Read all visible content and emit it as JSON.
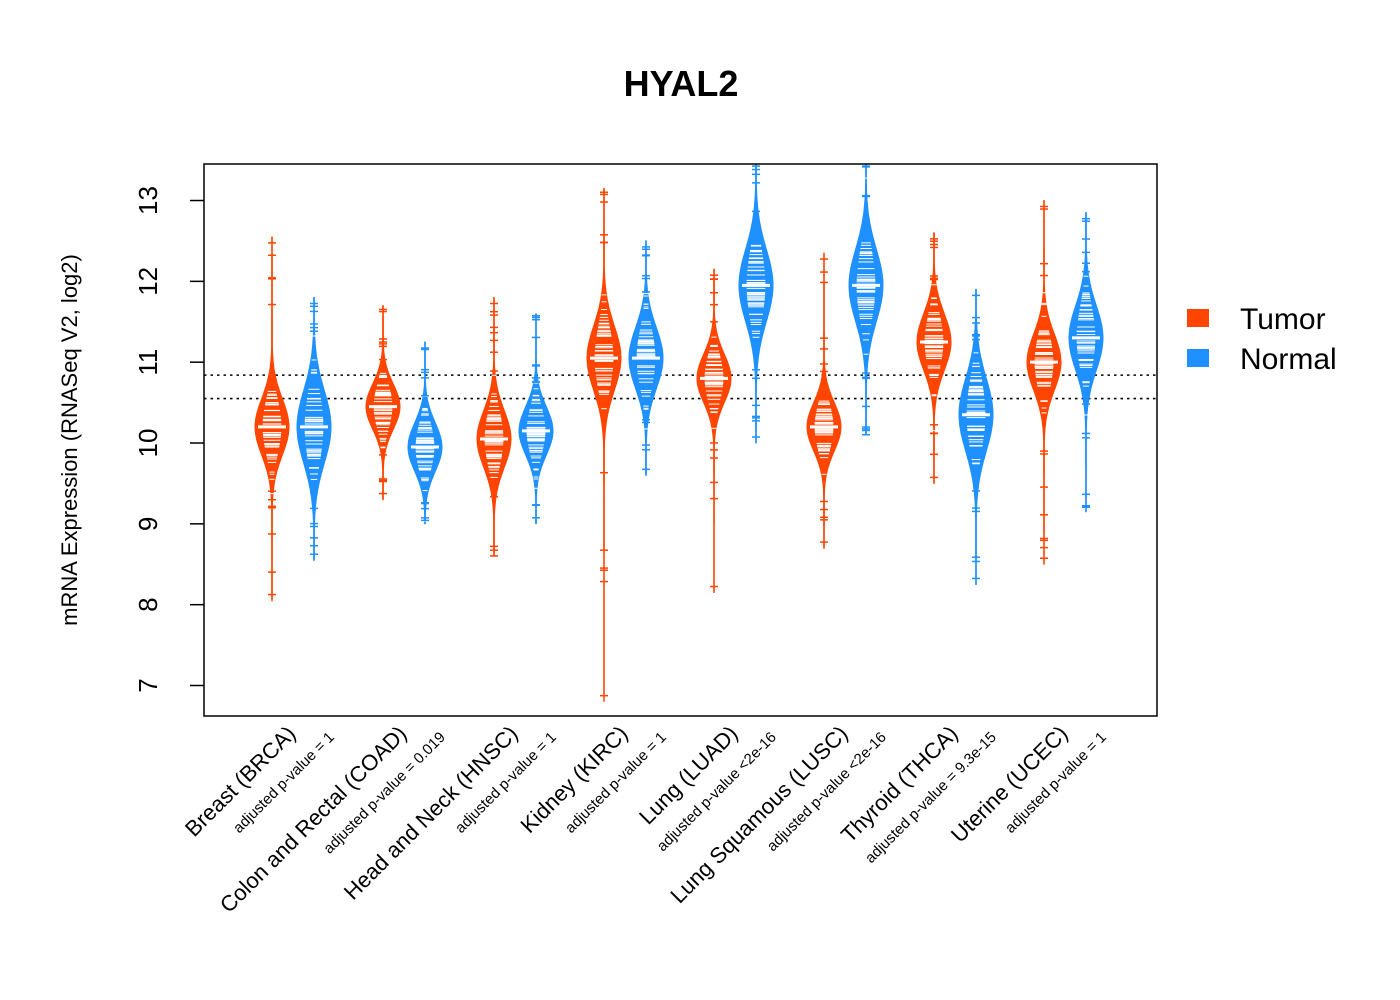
{
  "chart_data": {
    "type": "violin",
    "title": "HYAL2",
    "xlabel": "",
    "ylabel": "mRNA Expression (RNASeq V2, log2)",
    "ylim": [
      6.65,
      13.5
    ],
    "yticks": [
      "7",
      "8",
      "9",
      "10",
      "11",
      "12",
      "13"
    ],
    "reference_lines": [
      10.55,
      10.84
    ],
    "legend": {
      "position": "right",
      "entries": [
        {
          "label": "Tumor",
          "color": "#FF4500"
        },
        {
          "label": "Normal",
          "color": "#1E90FF"
        }
      ]
    },
    "categories": [
      {
        "label": "Breast (BRCA)",
        "pvalue": "adjusted p-value = 1"
      },
      {
        "label": "Colon and Rectal (COAD)",
        "pvalue": "adjusted p-value = 0.019"
      },
      {
        "label": "Head and Neck (HNSC)",
        "pvalue": "adjusted p-value = 1"
      },
      {
        "label": "Kidney (KIRC)",
        "pvalue": "adjusted p-value = 1"
      },
      {
        "label": "Lung (LUAD)",
        "pvalue": "adjusted p-value <2e-16"
      },
      {
        "label": "Lung Squamous (LUSC)",
        "pvalue": "adjusted p-value <2e-16"
      },
      {
        "label": "Thyroid (THCA)",
        "pvalue": "adjusted p-value = 9.3e-15"
      },
      {
        "label": "Uterine (UCEC)",
        "pvalue": "adjusted p-value = 1"
      }
    ],
    "series": [
      {
        "name": "Tumor",
        "color": "#FF4500",
        "medians": [
          10.2,
          10.45,
          10.05,
          11.05,
          10.8,
          10.2,
          11.25,
          11.0
        ],
        "ranges": [
          [
            8.05,
            12.55
          ],
          [
            9.3,
            11.7
          ],
          [
            8.6,
            11.8
          ],
          [
            6.8,
            13.15
          ],
          [
            8.15,
            12.15
          ],
          [
            8.7,
            12.35
          ],
          [
            9.5,
            12.6
          ],
          [
            8.5,
            13.0
          ]
        ],
        "iqr_sd": [
          0.35,
          0.28,
          0.35,
          0.4,
          0.3,
          0.3,
          0.35,
          0.35
        ]
      },
      {
        "name": "Normal",
        "color": "#1E90FF",
        "medians": [
          10.2,
          9.95,
          10.15,
          11.05,
          11.95,
          11.95,
          10.35,
          11.3
        ],
        "ranges": [
          [
            8.55,
            11.8
          ],
          [
            9.0,
            11.25
          ],
          [
            9.0,
            11.6
          ],
          [
            9.6,
            12.5
          ],
          [
            10.0,
            13.5
          ],
          [
            10.1,
            13.5
          ],
          [
            8.25,
            11.9
          ],
          [
            9.15,
            12.85
          ]
        ],
        "iqr_sd": [
          0.45,
          0.3,
          0.3,
          0.38,
          0.45,
          0.45,
          0.45,
          0.4
        ]
      }
    ]
  }
}
